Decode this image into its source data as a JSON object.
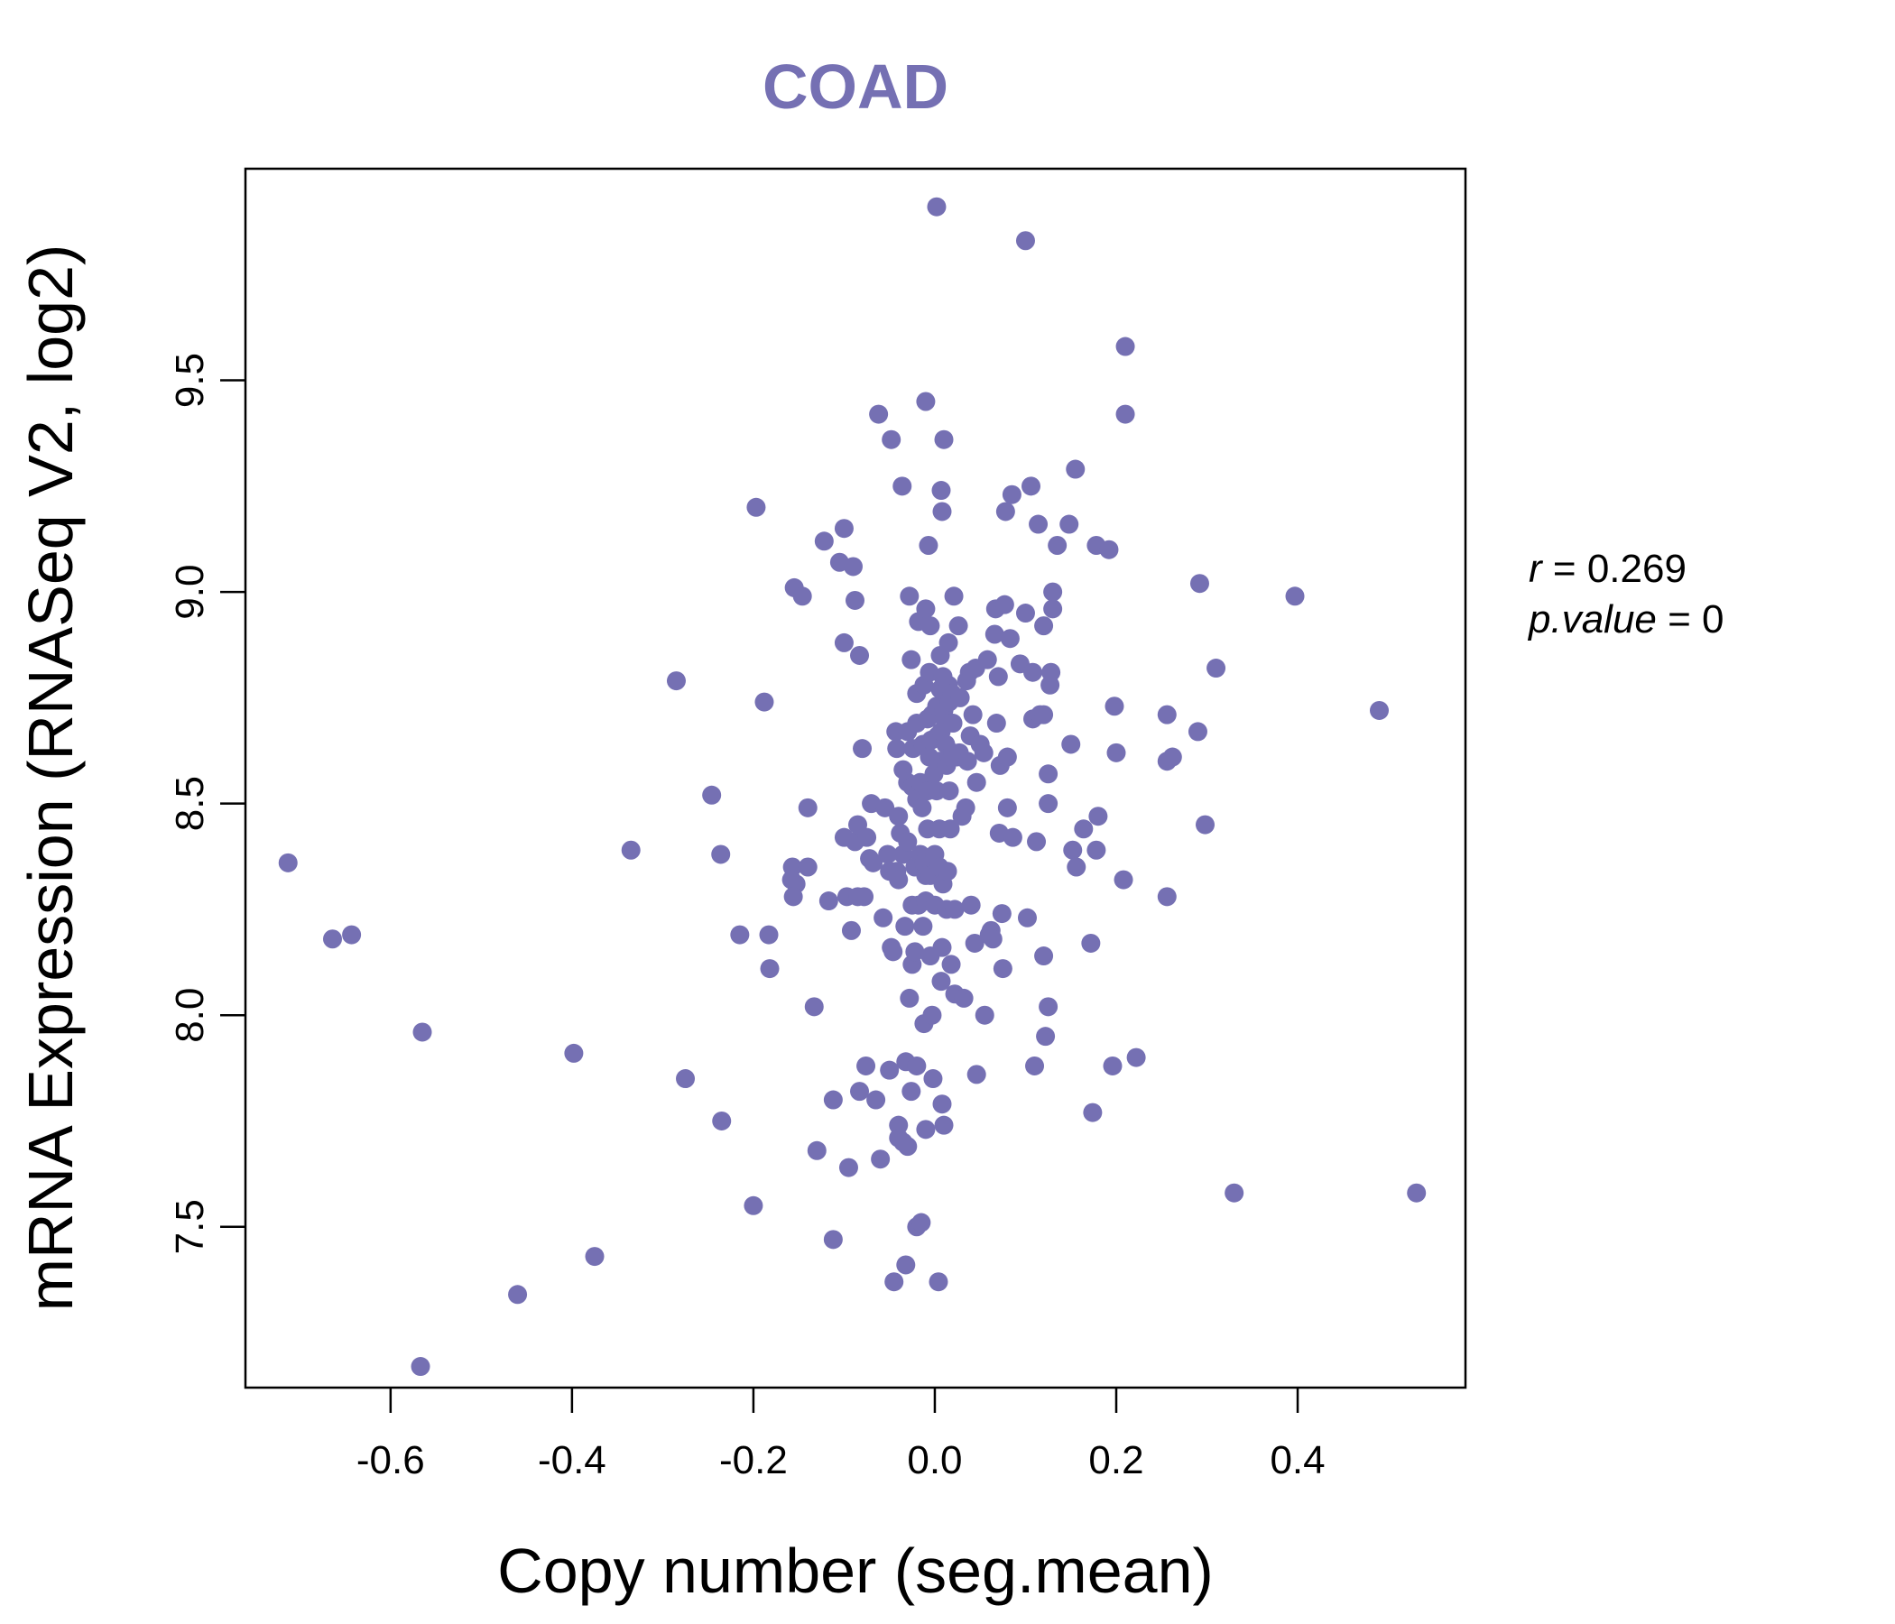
{
  "accent_color": "#7570b3",
  "chart_data": {
    "type": "scatter",
    "title": "COAD",
    "xlabel": "Copy number (seg.mean)",
    "ylabel": "mRNA Expression (RNASeq V2, log2)",
    "xlim": [
      -0.76,
      0.585
    ],
    "ylim": [
      7.12,
      10.0
    ],
    "xticks": [
      -0.6,
      -0.4,
      -0.2,
      0.0,
      0.2,
      0.4
    ],
    "xtick_labels": [
      "-0.6",
      "-0.4",
      "-0.2",
      "0.0",
      "0.2",
      "0.4"
    ],
    "yticks": [
      7.5,
      8.0,
      8.5,
      9.0,
      9.5
    ],
    "ytick_labels": [
      "7.5",
      "8.0",
      "8.5",
      "9.0",
      "9.5"
    ],
    "grid": false,
    "legend": "none",
    "point_color": "#7570b3",
    "annotations": {
      "r_label": "r",
      "r_value": "0.269",
      "p_label": "p.value",
      "p_value": "0"
    },
    "points": [
      [
        -0.713,
        8.36
      ],
      [
        -0.664,
        8.18
      ],
      [
        -0.643,
        8.19
      ],
      [
        -0.565,
        7.96
      ],
      [
        -0.567,
        7.17
      ],
      [
        -0.46,
        7.34
      ],
      [
        -0.398,
        7.91
      ],
      [
        -0.375,
        7.43
      ],
      [
        -0.335,
        8.39
      ],
      [
        -0.285,
        8.79
      ],
      [
        -0.275,
        7.85
      ],
      [
        -0.246,
        8.52
      ],
      [
        -0.236,
        8.38
      ],
      [
        -0.235,
        7.75
      ],
      [
        -0.215,
        8.19
      ],
      [
        -0.2,
        7.55
      ],
      [
        -0.197,
        9.2
      ],
      [
        -0.188,
        8.74
      ],
      [
        -0.183,
        8.19
      ],
      [
        -0.182,
        8.11
      ],
      [
        -0.155,
        9.01
      ],
      [
        -0.157,
        8.35
      ],
      [
        -0.158,
        8.32
      ],
      [
        -0.153,
        8.31
      ],
      [
        -0.156,
        8.28
      ],
      [
        -0.146,
        8.99
      ],
      [
        -0.14,
        8.35
      ],
      [
        -0.14,
        8.49
      ],
      [
        -0.133,
        8.02
      ],
      [
        -0.13,
        7.68
      ],
      [
        -0.122,
        9.12
      ],
      [
        -0.117,
        8.27
      ],
      [
        -0.112,
        7.8
      ],
      [
        -0.112,
        7.47
      ],
      [
        -0.105,
        9.07
      ],
      [
        -0.1,
        9.15
      ],
      [
        -0.1,
        8.88
      ],
      [
        -0.1,
        8.42
      ],
      [
        -0.097,
        8.28
      ],
      [
        -0.095,
        7.64
      ],
      [
        -0.09,
        9.06
      ],
      [
        -0.092,
        8.2
      ],
      [
        -0.088,
        8.98
      ],
      [
        -0.088,
        8.41
      ],
      [
        -0.085,
        8.45
      ],
      [
        -0.085,
        8.28
      ],
      [
        -0.083,
        8.85
      ],
      [
        -0.083,
        7.82
      ],
      [
        -0.08,
        8.63
      ],
      [
        -0.078,
        8.28
      ],
      [
        -0.076,
        7.88
      ],
      [
        -0.075,
        8.42
      ],
      [
        -0.072,
        8.37
      ],
      [
        -0.07,
        8.5
      ],
      [
        -0.068,
        8.36
      ],
      [
        -0.065,
        7.8
      ],
      [
        -0.062,
        9.42
      ],
      [
        -0.06,
        7.66
      ],
      [
        -0.057,
        8.23
      ],
      [
        -0.055,
        8.49
      ],
      [
        -0.052,
        8.38
      ],
      [
        -0.05,
        8.34
      ],
      [
        -0.05,
        7.87
      ],
      [
        -0.048,
        9.36
      ],
      [
        -0.048,
        8.16
      ],
      [
        -0.046,
        8.15
      ],
      [
        -0.045,
        7.37
      ],
      [
        -0.043,
        8.67
      ],
      [
        -0.042,
        8.63
      ],
      [
        -0.042,
        8.34
      ],
      [
        -0.04,
        8.47
      ],
      [
        -0.04,
        8.32
      ],
      [
        -0.04,
        7.74
      ],
      [
        -0.04,
        7.71
      ],
      [
        -0.038,
        8.43
      ],
      [
        -0.036,
        9.25
      ],
      [
        -0.035,
        8.58
      ],
      [
        -0.035,
        8.38
      ],
      [
        -0.035,
        7.7
      ],
      [
        -0.033,
        8.21
      ],
      [
        -0.032,
        7.89
      ],
      [
        -0.032,
        7.41
      ],
      [
        -0.03,
        8.67
      ],
      [
        -0.03,
        8.55
      ],
      [
        -0.03,
        8.41
      ],
      [
        -0.03,
        7.69
      ],
      [
        -0.028,
        8.99
      ],
      [
        -0.028,
        8.04
      ],
      [
        -0.026,
        8.84
      ],
      [
        -0.026,
        7.82
      ],
      [
        -0.025,
        8.54
      ],
      [
        -0.025,
        8.26
      ],
      [
        -0.025,
        8.12
      ],
      [
        -0.024,
        8.63
      ],
      [
        -0.022,
        8.35
      ],
      [
        -0.022,
        8.15
      ],
      [
        -0.02,
        8.76
      ],
      [
        -0.02,
        8.69
      ],
      [
        -0.02,
        8.51
      ],
      [
        -0.02,
        7.88
      ],
      [
        -0.02,
        7.5
      ],
      [
        -0.018,
        8.93
      ],
      [
        -0.018,
        8.26
      ],
      [
        -0.016,
        8.55
      ],
      [
        -0.016,
        8.38
      ],
      [
        -0.015,
        7.51
      ],
      [
        -0.014,
        8.49
      ],
      [
        -0.013,
        8.64
      ],
      [
        -0.013,
        8.21
      ],
      [
        -0.012,
        8.78
      ],
      [
        -0.012,
        8.36
      ],
      [
        -0.012,
        7.98
      ],
      [
        -0.01,
        9.45
      ],
      [
        -0.01,
        8.96
      ],
      [
        -0.01,
        8.33
      ],
      [
        -0.01,
        8.27
      ],
      [
        -0.01,
        7.73
      ],
      [
        -0.008,
        8.7
      ],
      [
        -0.008,
        8.53
      ],
      [
        -0.008,
        8.44
      ],
      [
        -0.007,
        9.11
      ],
      [
        -0.006,
        8.81
      ],
      [
        -0.006,
        8.61
      ],
      [
        -0.005,
        8.92
      ],
      [
        -0.005,
        8.33
      ],
      [
        -0.005,
        8.14
      ],
      [
        -0.004,
        8.65
      ],
      [
        -0.003,
        8.71
      ],
      [
        -0.003,
        8.0
      ],
      [
        -0.002,
        7.85
      ],
      [
        -0.001,
        8.57
      ],
      [
        0.0,
        8.38
      ],
      [
        0.0,
        8.26
      ],
      [
        0.002,
        9.91
      ],
      [
        0.002,
        8.73
      ],
      [
        0.002,
        8.53
      ],
      [
        0.003,
        8.66
      ],
      [
        0.004,
        7.37
      ],
      [
        0.005,
        8.6
      ],
      [
        0.005,
        8.44
      ],
      [
        0.005,
        8.35
      ],
      [
        0.006,
        8.85
      ],
      [
        0.006,
        8.77
      ],
      [
        0.007,
        9.24
      ],
      [
        0.007,
        8.67
      ],
      [
        0.007,
        8.08
      ],
      [
        0.008,
        9.19
      ],
      [
        0.008,
        8.16
      ],
      [
        0.008,
        7.79
      ],
      [
        0.009,
        8.8
      ],
      [
        0.009,
        8.31
      ],
      [
        0.01,
        8.72
      ],
      [
        0.01,
        7.74
      ],
      [
        0.01,
        9.36
      ],
      [
        0.012,
        8.69
      ],
      [
        0.012,
        8.64
      ],
      [
        0.013,
        8.59
      ],
      [
        0.013,
        8.25
      ],
      [
        0.014,
        8.34
      ],
      [
        0.015,
        8.88
      ],
      [
        0.015,
        8.78
      ],
      [
        0.016,
        8.74
      ],
      [
        0.016,
        8.61
      ],
      [
        0.016,
        8.53
      ],
      [
        0.017,
        8.44
      ],
      [
        0.018,
        8.12
      ],
      [
        0.019,
        8.76
      ],
      [
        0.02,
        8.69
      ],
      [
        0.02,
        8.62
      ],
      [
        0.021,
        8.99
      ],
      [
        0.022,
        8.25
      ],
      [
        0.022,
        8.05
      ],
      [
        0.024,
        8.61
      ],
      [
        0.026,
        8.92
      ],
      [
        0.027,
        8.62
      ],
      [
        0.028,
        8.75
      ],
      [
        0.03,
        8.47
      ],
      [
        0.032,
        8.04
      ],
      [
        0.034,
        8.49
      ],
      [
        0.035,
        8.79
      ],
      [
        0.036,
        8.6
      ],
      [
        0.038,
        8.81
      ],
      [
        0.039,
        8.66
      ],
      [
        0.04,
        8.26
      ],
      [
        0.042,
        8.71
      ],
      [
        0.044,
        8.17
      ],
      [
        0.045,
        8.82
      ],
      [
        0.046,
        8.55
      ],
      [
        0.046,
        7.86
      ],
      [
        0.05,
        8.64
      ],
      [
        0.054,
        8.62
      ],
      [
        0.055,
        8.0
      ],
      [
        0.058,
        8.84
      ],
      [
        0.06,
        8.19
      ],
      [
        0.062,
        8.2
      ],
      [
        0.064,
        8.18
      ],
      [
        0.066,
        8.9
      ],
      [
        0.067,
        8.96
      ],
      [
        0.068,
        8.69
      ],
      [
        0.07,
        8.8
      ],
      [
        0.071,
        8.43
      ],
      [
        0.072,
        8.59
      ],
      [
        0.074,
        8.24
      ],
      [
        0.075,
        8.11
      ],
      [
        0.077,
        8.97
      ],
      [
        0.078,
        9.19
      ],
      [
        0.08,
        8.49
      ],
      [
        0.08,
        8.61
      ],
      [
        0.083,
        8.89
      ],
      [
        0.085,
        9.23
      ],
      [
        0.086,
        8.42
      ],
      [
        0.094,
        8.83
      ],
      [
        0.1,
        9.83
      ],
      [
        0.1,
        8.95
      ],
      [
        0.102,
        8.23
      ],
      [
        0.106,
        9.25
      ],
      [
        0.108,
        8.81
      ],
      [
        0.108,
        8.7
      ],
      [
        0.11,
        7.88
      ],
      [
        0.112,
        8.41
      ],
      [
        0.114,
        9.16
      ],
      [
        0.116,
        8.71
      ],
      [
        0.12,
        8.92
      ],
      [
        0.12,
        8.14
      ],
      [
        0.12,
        8.71
      ],
      [
        0.122,
        7.95
      ],
      [
        0.125,
        8.57
      ],
      [
        0.125,
        8.5
      ],
      [
        0.125,
        8.02
      ],
      [
        0.127,
        8.78
      ],
      [
        0.128,
        8.81
      ],
      [
        0.13,
        8.96
      ],
      [
        0.13,
        9.0
      ],
      [
        0.135,
        9.11
      ],
      [
        0.148,
        9.16
      ],
      [
        0.15,
        8.64
      ],
      [
        0.152,
        8.39
      ],
      [
        0.155,
        9.29
      ],
      [
        0.156,
        8.35
      ],
      [
        0.164,
        8.44
      ],
      [
        0.172,
        8.17
      ],
      [
        0.174,
        7.77
      ],
      [
        0.178,
        8.39
      ],
      [
        0.178,
        9.11
      ],
      [
        0.18,
        8.47
      ],
      [
        0.192,
        9.1
      ],
      [
        0.196,
        7.88
      ],
      [
        0.198,
        8.73
      ],
      [
        0.2,
        8.62
      ],
      [
        0.208,
        8.32
      ],
      [
        0.21,
        9.58
      ],
      [
        0.21,
        9.42
      ],
      [
        0.222,
        7.9
      ],
      [
        0.256,
        8.71
      ],
      [
        0.256,
        8.6
      ],
      [
        0.256,
        8.28
      ],
      [
        0.262,
        8.61
      ],
      [
        0.29,
        8.67
      ],
      [
        0.292,
        9.02
      ],
      [
        0.298,
        8.45
      ],
      [
        0.31,
        8.82
      ],
      [
        0.33,
        7.58
      ],
      [
        0.397,
        8.99
      ],
      [
        0.49,
        8.72
      ],
      [
        0.531,
        7.58
      ]
    ]
  }
}
